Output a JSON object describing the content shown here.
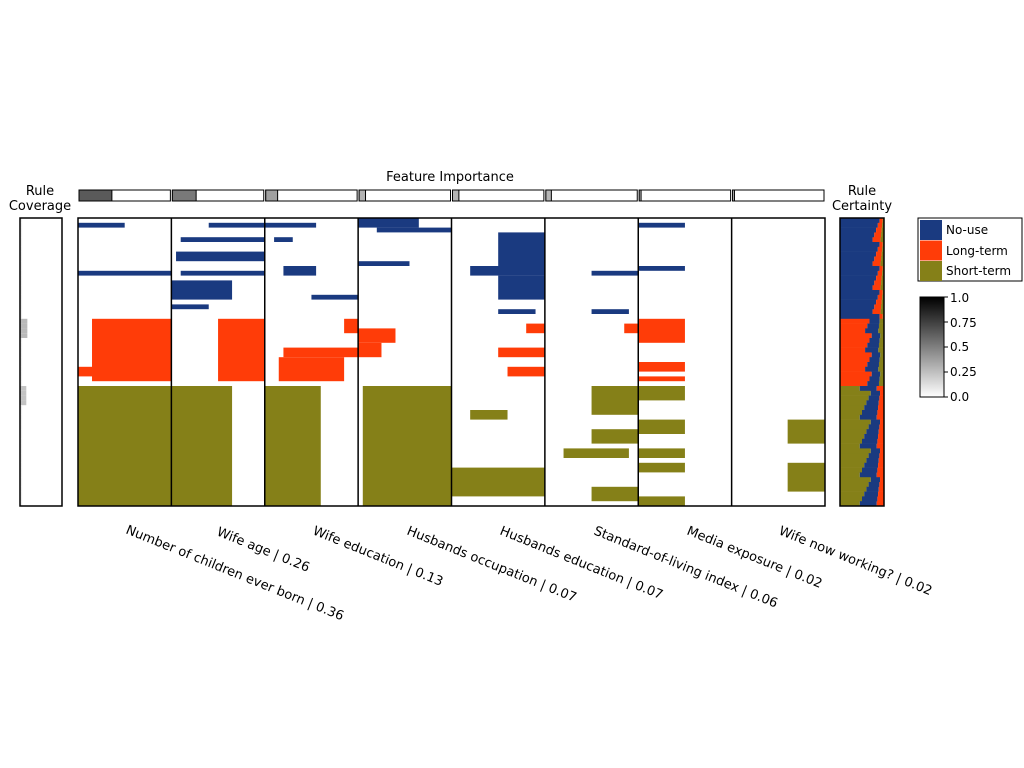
{
  "chart_data": {
    "type": "heatmap",
    "title": "Feature Importance",
    "left_panel_label": [
      "Rule",
      "Coverage"
    ],
    "right_panel_label": [
      "Rule",
      "Certainty"
    ],
    "features": [
      {
        "name": "Number of children ever born",
        "importance": 0.36,
        "label": "Number of children ever born | 0.36"
      },
      {
        "name": "Wife age",
        "importance": 0.26,
        "label": "Wife age | 0.26"
      },
      {
        "name": "Wife education",
        "importance": 0.13,
        "label": "Wife education | 0.13"
      },
      {
        "name": "Husbands occupation",
        "importance": 0.07,
        "label": "Husbands occupation | 0.07"
      },
      {
        "name": "Husbands education",
        "importance": 0.07,
        "label": "Husbands education | 0.07"
      },
      {
        "name": "Standard-of-living index",
        "importance": 0.06,
        "label": "Standard-of-living index | 0.06"
      },
      {
        "name": "Media exposure",
        "importance": 0.02,
        "label": "Media exposure | 0.02"
      },
      {
        "name": "Wife now working?",
        "importance": 0.02,
        "label": "Wife now working? | 0.02"
      }
    ],
    "classes": [
      {
        "name": "No-use",
        "color": "#1a3a80"
      },
      {
        "name": "Long-term",
        "color": "#ff3c08"
      },
      {
        "name": "Short-term",
        "color": "#858018"
      }
    ],
    "colorbar": {
      "ticks": [
        "1.0",
        "0.75",
        "0.5",
        "0.25",
        "0.0"
      ],
      "range": [
        0,
        1
      ]
    },
    "rules": {
      "count": 60,
      "class_blocks": [
        {
          "class": "No-use",
          "from": 0,
          "to": 21
        },
        {
          "class": "Long-term",
          "from": 21,
          "to": 35
        },
        {
          "class": "Short-term",
          "from": 35,
          "to": 60
        }
      ],
      "segments": [
        {
          "class": "No-use",
          "feature": 0,
          "rows": [
            1,
            2
          ],
          "range": [
            0.0,
            0.5
          ]
        },
        {
          "class": "No-use",
          "feature": 0,
          "rows": [
            11,
            12
          ],
          "range": [
            0.0,
            1.0
          ]
        },
        {
          "class": "No-use",
          "feature": 1,
          "rows": [
            1,
            2
          ],
          "range": [
            0.4,
            1.0
          ]
        },
        {
          "class": "No-use",
          "feature": 1,
          "rows": [
            4,
            5
          ],
          "range": [
            0.1,
            1.0
          ]
        },
        {
          "class": "No-use",
          "feature": 1,
          "rows": [
            7,
            9
          ],
          "range": [
            0.05,
            1.0
          ]
        },
        {
          "class": "No-use",
          "feature": 1,
          "rows": [
            11,
            12
          ],
          "range": [
            0.1,
            1.0
          ]
        },
        {
          "class": "No-use",
          "feature": 1,
          "rows": [
            13,
            17
          ],
          "range": [
            0.0,
            0.65
          ]
        },
        {
          "class": "No-use",
          "feature": 1,
          "rows": [
            18,
            19
          ],
          "range": [
            0.0,
            0.4
          ]
        },
        {
          "class": "No-use",
          "feature": 2,
          "rows": [
            1,
            2
          ],
          "range": [
            0.0,
            0.55
          ]
        },
        {
          "class": "No-use",
          "feature": 2,
          "rows": [
            4,
            5
          ],
          "range": [
            0.1,
            0.3
          ]
        },
        {
          "class": "No-use",
          "feature": 2,
          "rows": [
            10,
            12
          ],
          "range": [
            0.2,
            0.55
          ]
        },
        {
          "class": "No-use",
          "feature": 2,
          "rows": [
            16,
            17
          ],
          "range": [
            0.5,
            1.0
          ]
        },
        {
          "class": "No-use",
          "feature": 3,
          "rows": [
            0,
            2
          ],
          "range": [
            0.0,
            0.65
          ]
        },
        {
          "class": "No-use",
          "feature": 3,
          "rows": [
            2,
            3
          ],
          "range": [
            0.2,
            1.0
          ]
        },
        {
          "class": "No-use",
          "feature": 3,
          "rows": [
            9,
            10
          ],
          "range": [
            0.0,
            0.55
          ]
        },
        {
          "class": "No-use",
          "feature": 4,
          "rows": [
            3,
            10
          ],
          "range": [
            0.5,
            1.0
          ]
        },
        {
          "class": "No-use",
          "feature": 4,
          "rows": [
            10,
            12
          ],
          "range": [
            0.2,
            1.0
          ]
        },
        {
          "class": "No-use",
          "feature": 4,
          "rows": [
            12,
            17
          ],
          "range": [
            0.5,
            1.0
          ]
        },
        {
          "class": "No-use",
          "feature": 4,
          "rows": [
            19,
            20
          ],
          "range": [
            0.5,
            0.9
          ]
        },
        {
          "class": "No-use",
          "feature": 5,
          "rows": [
            11,
            12
          ],
          "range": [
            0.5,
            1.0
          ]
        },
        {
          "class": "No-use",
          "feature": 5,
          "rows": [
            19,
            20
          ],
          "range": [
            0.5,
            0.9
          ]
        },
        {
          "class": "No-use",
          "feature": 6,
          "rows": [
            1,
            2
          ],
          "range": [
            0.0,
            0.5
          ]
        },
        {
          "class": "No-use",
          "feature": 6,
          "rows": [
            10,
            11
          ],
          "range": [
            0.0,
            0.5
          ]
        },
        {
          "class": "Long-term",
          "feature": 0,
          "rows": [
            21,
            34
          ],
          "range": [
            0.15,
            1.0
          ]
        },
        {
          "class": "Long-term",
          "feature": 0,
          "rows": [
            31,
            33
          ],
          "range": [
            0.0,
            0.15
          ]
        },
        {
          "class": "Long-term",
          "feature": 1,
          "rows": [
            21,
            34
          ],
          "range": [
            0.5,
            1.0
          ]
        },
        {
          "class": "Long-term",
          "feature": 2,
          "rows": [
            21,
            24
          ],
          "range": [
            0.85,
            1.0
          ]
        },
        {
          "class": "Long-term",
          "feature": 2,
          "rows": [
            27,
            29
          ],
          "range": [
            0.2,
            1.0
          ]
        },
        {
          "class": "Long-term",
          "feature": 2,
          "rows": [
            29,
            34
          ],
          "range": [
            0.15,
            0.85
          ]
        },
        {
          "class": "Long-term",
          "feature": 3,
          "rows": [
            23,
            26
          ],
          "range": [
            0.0,
            0.4
          ]
        },
        {
          "class": "Long-term",
          "feature": 3,
          "rows": [
            26,
            29
          ],
          "range": [
            0.0,
            0.25
          ]
        },
        {
          "class": "Long-term",
          "feature": 4,
          "rows": [
            22,
            24
          ],
          "range": [
            0.8,
            1.0
          ]
        },
        {
          "class": "Long-term",
          "feature": 4,
          "rows": [
            27,
            29
          ],
          "range": [
            0.5,
            1.0
          ]
        },
        {
          "class": "Long-term",
          "feature": 4,
          "rows": [
            31,
            33
          ],
          "range": [
            0.6,
            1.0
          ]
        },
        {
          "class": "Long-term",
          "feature": 5,
          "rows": [
            22,
            24
          ],
          "range": [
            0.85,
            1.0
          ]
        },
        {
          "class": "Long-term",
          "feature": 6,
          "rows": [
            21,
            26
          ],
          "range": [
            0.0,
            0.5
          ]
        },
        {
          "class": "Long-term",
          "feature": 6,
          "rows": [
            30,
            32
          ],
          "range": [
            0.0,
            0.5
          ]
        },
        {
          "class": "Long-term",
          "feature": 6,
          "rows": [
            33,
            34
          ],
          "range": [
            0.0,
            0.5
          ]
        },
        {
          "class": "Short-term",
          "feature": 0,
          "rows": [
            35,
            60
          ],
          "range": [
            0.0,
            1.0
          ]
        },
        {
          "class": "Short-term",
          "feature": 1,
          "rows": [
            35,
            60
          ],
          "range": [
            0.0,
            0.65
          ]
        },
        {
          "class": "Short-term",
          "feature": 2,
          "rows": [
            35,
            60
          ],
          "range": [
            0.0,
            0.6
          ]
        },
        {
          "class": "Short-term",
          "feature": 3,
          "rows": [
            35,
            60
          ],
          "range": [
            0.05,
            1.0
          ]
        },
        {
          "class": "Short-term",
          "feature": 4,
          "rows": [
            40,
            42
          ],
          "range": [
            0.2,
            0.6
          ]
        },
        {
          "class": "Short-term",
          "feature": 4,
          "rows": [
            52,
            58
          ],
          "range": [
            0.0,
            1.0
          ]
        },
        {
          "class": "Short-term",
          "feature": 5,
          "rows": [
            35,
            41
          ],
          "range": [
            0.5,
            1.0
          ]
        },
        {
          "class": "Short-term",
          "feature": 5,
          "rows": [
            44,
            47
          ],
          "range": [
            0.5,
            1.0
          ]
        },
        {
          "class": "Short-term",
          "feature": 5,
          "rows": [
            48,
            50
          ],
          "range": [
            0.2,
            0.9
          ]
        },
        {
          "class": "Short-term",
          "feature": 5,
          "rows": [
            56,
            59
          ],
          "range": [
            0.5,
            1.0
          ]
        },
        {
          "class": "Short-term",
          "feature": 6,
          "rows": [
            35,
            38
          ],
          "range": [
            0.0,
            0.5
          ]
        },
        {
          "class": "Short-term",
          "feature": 6,
          "rows": [
            42,
            45
          ],
          "range": [
            0.0,
            0.5
          ]
        },
        {
          "class": "Short-term",
          "feature": 6,
          "rows": [
            48,
            50
          ],
          "range": [
            0.0,
            0.5
          ]
        },
        {
          "class": "Short-term",
          "feature": 6,
          "rows": [
            51,
            53
          ],
          "range": [
            0.0,
            0.5
          ]
        },
        {
          "class": "Short-term",
          "feature": 6,
          "rows": [
            58,
            60
          ],
          "range": [
            0.0,
            0.5
          ]
        },
        {
          "class": "Short-term",
          "feature": 7,
          "rows": [
            42,
            47
          ],
          "range": [
            0.6,
            1.0
          ]
        },
        {
          "class": "Short-term",
          "feature": 7,
          "rows": [
            51,
            57
          ],
          "range": [
            0.6,
            1.0
          ]
        }
      ]
    }
  }
}
